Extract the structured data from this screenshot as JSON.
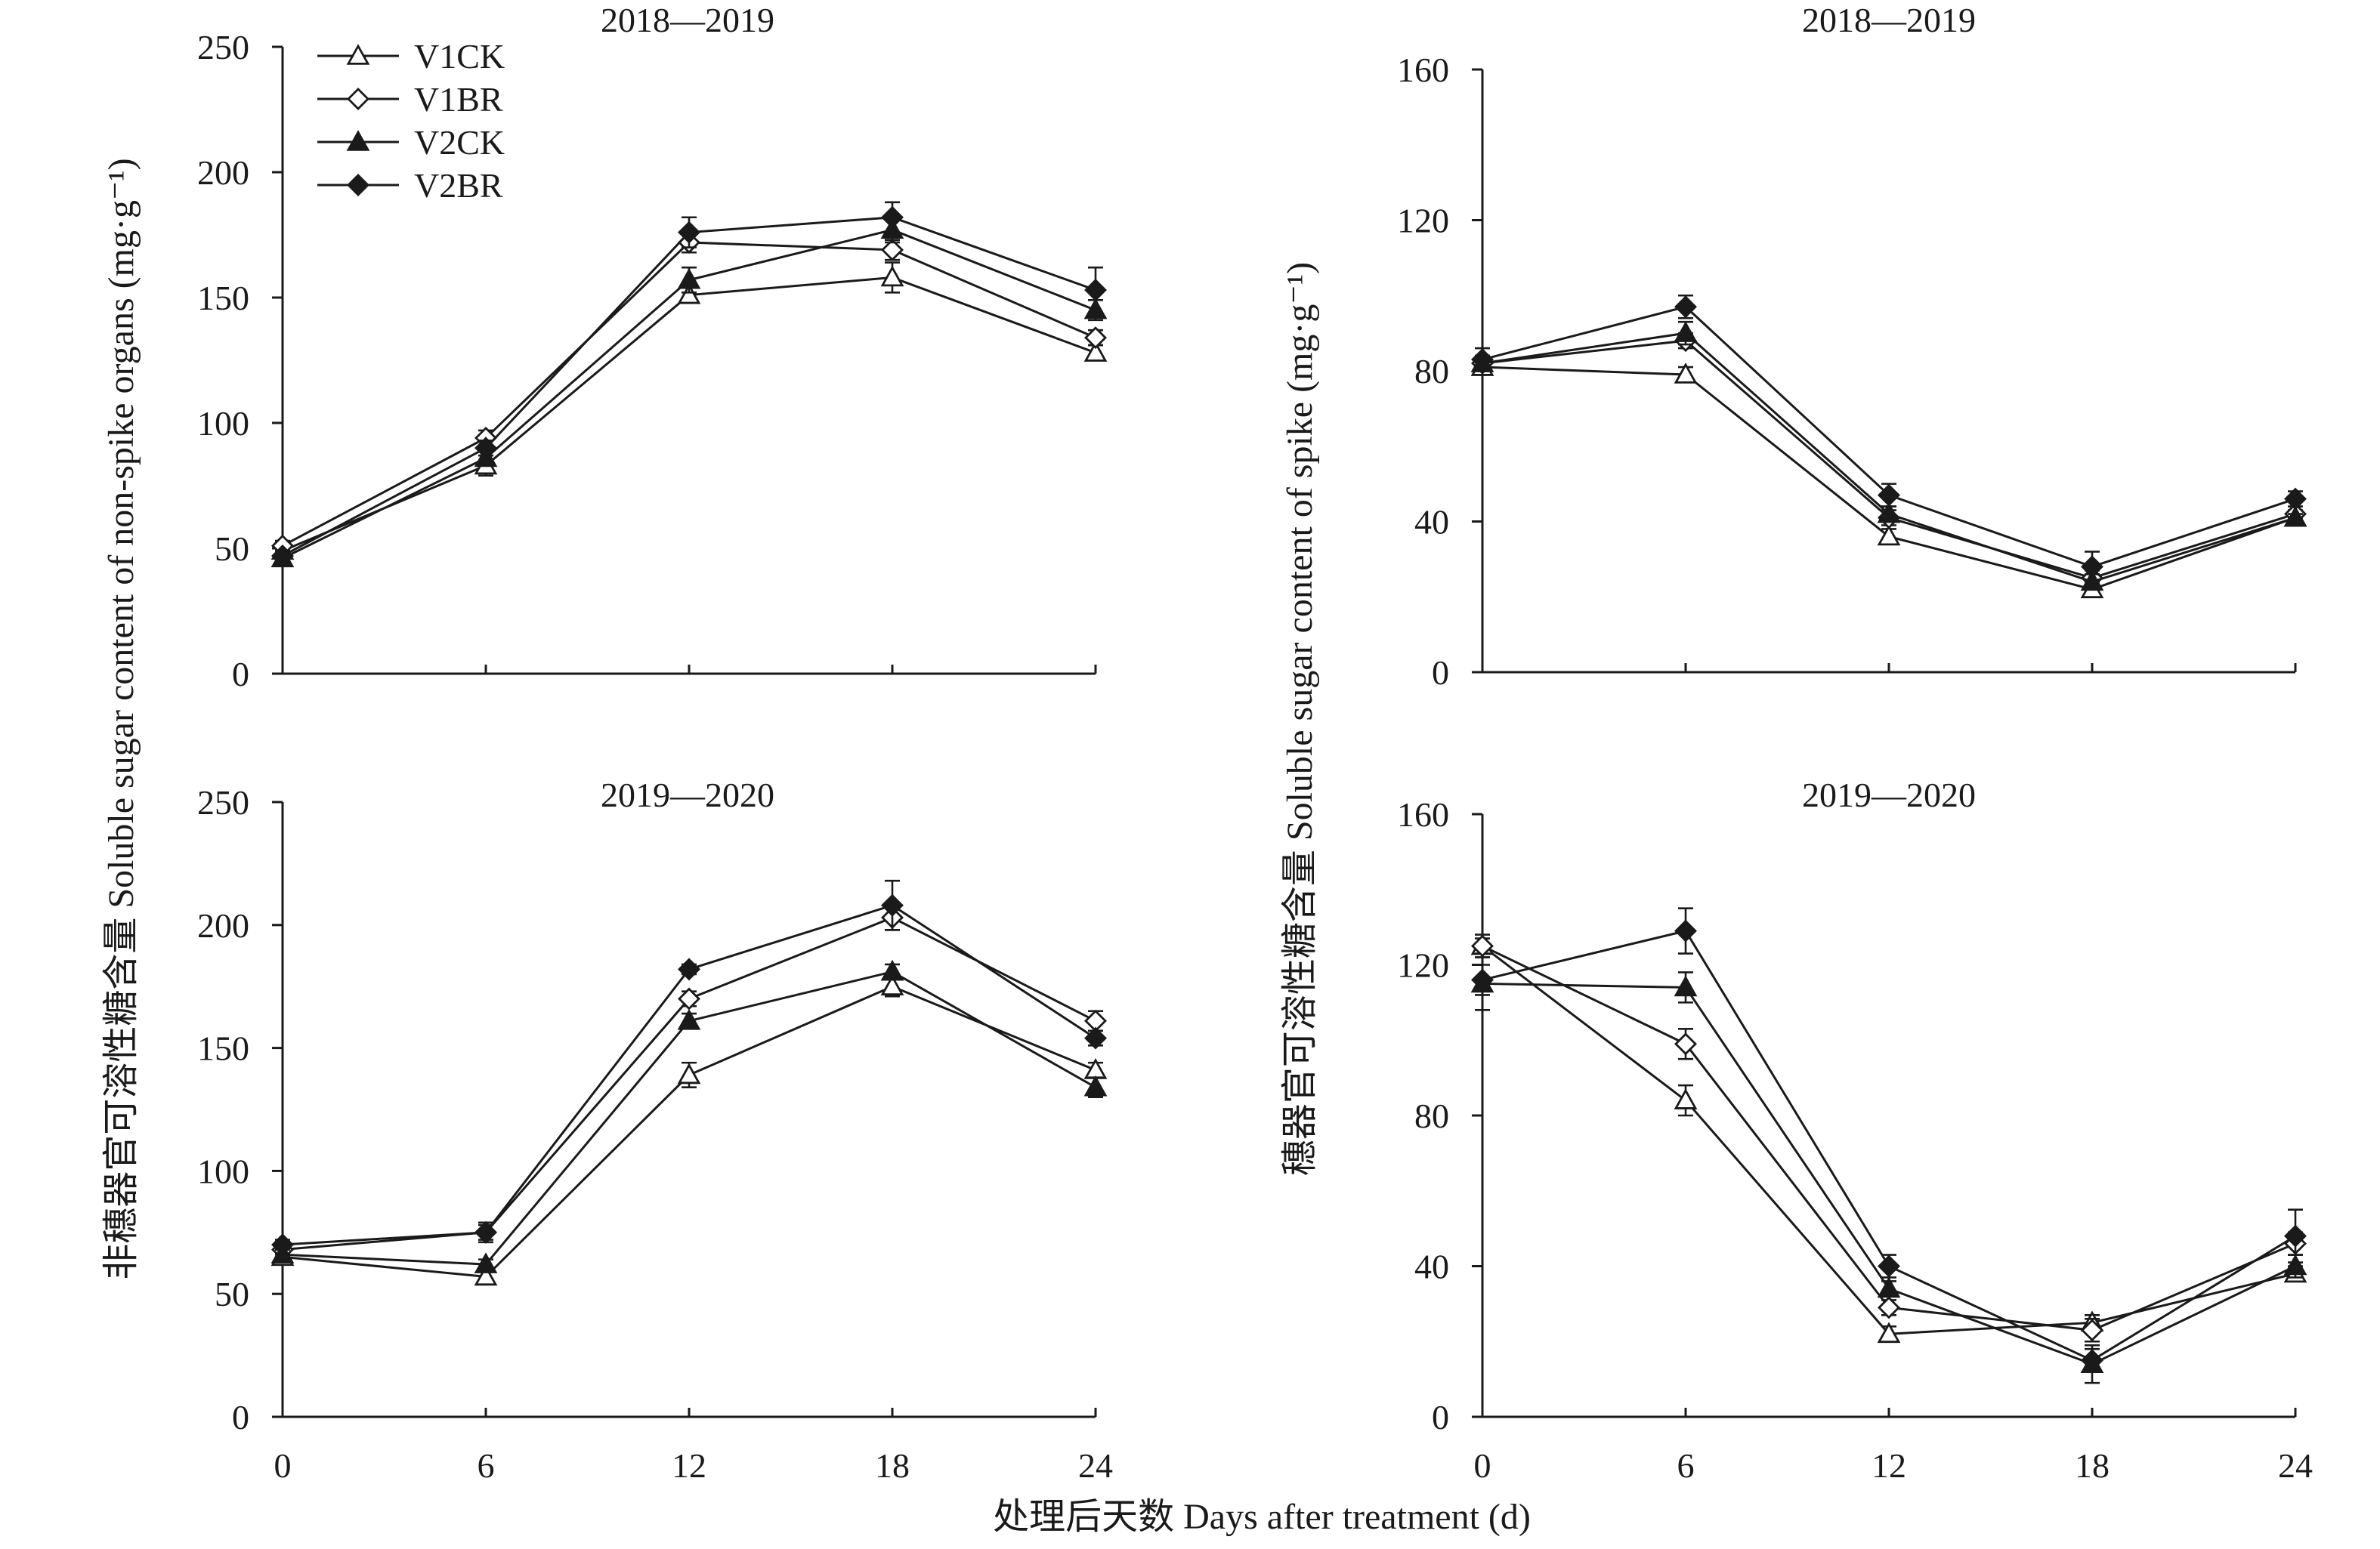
{
  "figure": {
    "y_left_title": "非穗器官可溶性糖含量 Soluble sugar content of non-spike organs (mg·g⁻¹)",
    "y_right_title": "穗器官可溶性糖含量 Soluble sugar content of spike (mg·g⁻¹)",
    "x_title": "处理后天数 Days after treatment (d)"
  },
  "legend": [
    {
      "name": "V1CK",
      "marker": "triangle-open"
    },
    {
      "name": "V1BR",
      "marker": "diamond-open"
    },
    {
      "name": "V2CK",
      "marker": "triangle-filled"
    },
    {
      "name": "V2BR",
      "marker": "diamond-filled"
    }
  ],
  "chart_data": [
    {
      "type": "line",
      "title": "2018—2019",
      "x": [
        0,
        6,
        12,
        18,
        24
      ],
      "xticks": [
        "0",
        "6",
        "12",
        "18",
        "24"
      ],
      "ylim": [
        0,
        250
      ],
      "yticks": [
        0,
        50,
        100,
        150,
        200,
        250
      ],
      "grid": false,
      "series": [
        {
          "name": "V1CK",
          "values": [
            49,
            83,
            151,
            158,
            128
          ],
          "errors": [
            3,
            4,
            3,
            6,
            3
          ]
        },
        {
          "name": "V1BR",
          "values": [
            51,
            94,
            172,
            169,
            134
          ],
          "errors": [
            2,
            3,
            4,
            4,
            3
          ]
        },
        {
          "name": "V2CK",
          "values": [
            46,
            86,
            157,
            177,
            145
          ],
          "errors": [
            2,
            3,
            5,
            5,
            4
          ]
        },
        {
          "name": "V2BR",
          "values": [
            47,
            90,
            176,
            182,
            153
          ],
          "errors": [
            2,
            3,
            6,
            6,
            9
          ]
        }
      ]
    },
    {
      "type": "line",
      "title": "2018—2019",
      "x": [
        0,
        6,
        12,
        18,
        24
      ],
      "xticks": [
        "0",
        "6",
        "12",
        "18",
        "24"
      ],
      "ylim": [
        0,
        160
      ],
      "yticks": [
        0,
        40,
        80,
        120,
        160
      ],
      "grid": false,
      "series": [
        {
          "name": "V1CK",
          "values": [
            81,
            79,
            36,
            22,
            41
          ],
          "errors": [
            2,
            2,
            2,
            2,
            1
          ]
        },
        {
          "name": "V1BR",
          "values": [
            82,
            88,
            41,
            25,
            42
          ],
          "errors": [
            2,
            2,
            2,
            2,
            1
          ]
        },
        {
          "name": "V2CK",
          "values": [
            82,
            90,
            42,
            24,
            41
          ],
          "errors": [
            2,
            3,
            2,
            2,
            1
          ]
        },
        {
          "name": "V2BR",
          "values": [
            83,
            97,
            47,
            28,
            46
          ],
          "errors": [
            3,
            3,
            3,
            4,
            2
          ]
        }
      ]
    },
    {
      "type": "line",
      "title": "2019—2020",
      "x": [
        0,
        6,
        12,
        18,
        24
      ],
      "xticks": [
        "0",
        "6",
        "12",
        "18",
        "24"
      ],
      "ylim": [
        0,
        250
      ],
      "yticks": [
        0,
        50,
        100,
        150,
        200,
        250
      ],
      "grid": false,
      "series": [
        {
          "name": "V1CK",
          "values": [
            65,
            57,
            139,
            175,
            141
          ],
          "errors": [
            3,
            3,
            5,
            4,
            3
          ]
        },
        {
          "name": "V1BR",
          "values": [
            68,
            75,
            170,
            203,
            161
          ],
          "errors": [
            2,
            3,
            3,
            5,
            4
          ]
        },
        {
          "name": "V2CK",
          "values": [
            66,
            62,
            161,
            181,
            134
          ],
          "errors": [
            2,
            2,
            3,
            3,
            4
          ]
        },
        {
          "name": "V2BR",
          "values": [
            70,
            75,
            182,
            208,
            154
          ],
          "errors": [
            2,
            4,
            2,
            10,
            3
          ]
        }
      ]
    },
    {
      "type": "line",
      "title": "2019—2020",
      "x": [
        0,
        6,
        12,
        18,
        24
      ],
      "xticks": [
        "0",
        "6",
        "12",
        "18",
        "24"
      ],
      "ylim": [
        0,
        160
      ],
      "yticks": [
        0,
        40,
        80,
        120,
        160
      ],
      "grid": false,
      "series": [
        {
          "name": "V1CK",
          "values": [
            125,
            84,
            22,
            25,
            38
          ],
          "errors": [
            3,
            4,
            2,
            2,
            2
          ]
        },
        {
          "name": "V1BR",
          "values": [
            125,
            99,
            29,
            23,
            46
          ],
          "errors": [
            2,
            4,
            2,
            3,
            3
          ]
        },
        {
          "name": "V2CK",
          "values": [
            115,
            114,
            34,
            14,
            40
          ],
          "errors": [
            7,
            4,
            2,
            5,
            3
          ]
        },
        {
          "name": "V2BR",
          "values": [
            116,
            129,
            40,
            15,
            48
          ],
          "errors": [
            4,
            6,
            3,
            3,
            7
          ]
        }
      ]
    }
  ]
}
